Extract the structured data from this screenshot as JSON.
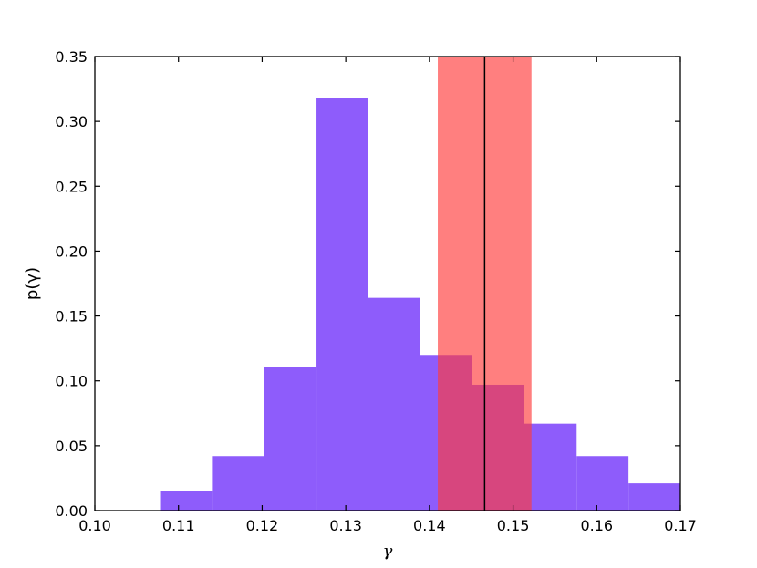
{
  "chart_data": {
    "type": "bar",
    "title": "",
    "xlabel": "γ",
    "ylabel": "p(γ)",
    "xlim": [
      0.1,
      0.17
    ],
    "ylim": [
      0.0,
      0.35
    ],
    "xticks": [
      "0.10",
      "0.11",
      "0.12",
      "0.13",
      "0.14",
      "0.15",
      "0.16",
      "0.17"
    ],
    "yticks": [
      "0.00",
      "0.05",
      "0.10",
      "0.15",
      "0.20",
      "0.25",
      "0.30",
      "0.35"
    ],
    "grid": false,
    "histogram": {
      "color": "#8e5cfb",
      "bins": [
        {
          "x0": 0.1078,
          "x1": 0.114,
          "value": 0.015
        },
        {
          "x0": 0.114,
          "x1": 0.1202,
          "value": 0.042
        },
        {
          "x0": 0.1202,
          "x1": 0.1265,
          "value": 0.111
        },
        {
          "x0": 0.1265,
          "x1": 0.1327,
          "value": 0.318
        },
        {
          "x0": 0.1327,
          "x1": 0.1389,
          "value": 0.164
        },
        {
          "x0": 0.1389,
          "x1": 0.1451,
          "value": 0.12
        },
        {
          "x0": 0.1451,
          "x1": 0.1513,
          "value": 0.097
        },
        {
          "x0": 0.1513,
          "x1": 0.1576,
          "value": 0.067
        },
        {
          "x0": 0.1576,
          "x1": 0.1638,
          "value": 0.042
        },
        {
          "x0": 0.1638,
          "x1": 0.17,
          "value": 0.021
        }
      ]
    },
    "band": {
      "x0": 0.141,
      "x1": 0.1522,
      "color": "#ff3b3b",
      "opacity": 0.65
    },
    "vline": {
      "x": 0.1466,
      "color": "#000000"
    }
  }
}
